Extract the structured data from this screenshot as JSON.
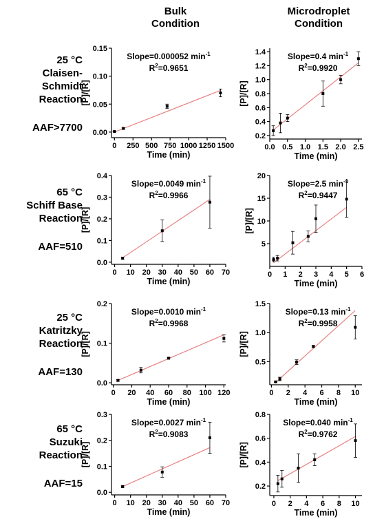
{
  "headers": {
    "bulk": [
      "Bulk",
      "Condition"
    ],
    "micro": [
      "Microdroplet",
      "Condition"
    ]
  },
  "rows": [
    {
      "temp": "25 °C",
      "name": [
        "Claisen-",
        "Schmidt",
        "Reaction"
      ],
      "aaf": "AAF>7700"
    },
    {
      "temp": "65 °C",
      "name": [
        "Schiff Base",
        "Reaction"
      ],
      "aaf": "AAF=510"
    },
    {
      "temp": "25 °C",
      "name": [
        "Katritzky",
        "Reaction"
      ],
      "aaf": "AAF=130"
    },
    {
      "temp": "65 °C",
      "name": [
        "Suzuki",
        "Reaction"
      ],
      "aaf": "AAF=15"
    }
  ],
  "colors": {
    "fit_line": "#e88080",
    "points": "#000000",
    "axis": "#000000"
  },
  "chart_data": [
    {
      "type": "scatter",
      "xlabel": "Time (min)",
      "ylabel": "[P]/[R]",
      "xlim": [
        -40,
        1500
      ],
      "ylim": [
        -0.01,
        0.15
      ],
      "xticks": [
        0,
        250,
        500,
        750,
        1000,
        1250,
        1500
      ],
      "yticks": [
        0.0,
        0.05,
        0.1,
        0.15
      ],
      "ydec": 2,
      "points": [
        {
          "x": 0,
          "y": 0.001,
          "err": 0.0005
        },
        {
          "x": 120,
          "y": 0.0065,
          "err": 0.001
        },
        {
          "x": 710,
          "y": 0.046,
          "err": 0.004
        },
        {
          "x": 1430,
          "y": 0.07,
          "err": 0.007
        }
      ],
      "fit": [
        [
          0,
          0.0
        ],
        [
          1430,
          0.0745
        ]
      ],
      "slope": {
        "prefix": "Slope=0.000052 min",
        "sup": "-1"
      },
      "r2": {
        "pre": "R",
        "sup": "2",
        "post": "=0.9651"
      }
    },
    {
      "type": "scatter",
      "xlabel": "Time (min)",
      "ylabel": "[P]/[R]",
      "xlim": [
        0,
        2.6
      ],
      "ylim": [
        0.15,
        1.45
      ],
      "xticks": [
        0.0,
        0.5,
        1.0,
        1.5,
        2.0,
        2.5
      ],
      "yticks": [
        0.2,
        0.4,
        0.6,
        0.8,
        1.0,
        1.2,
        1.4
      ],
      "xdec": 1,
      "ydec": 1,
      "points": [
        {
          "x": 0.1,
          "y": 0.27,
          "err": 0.07
        },
        {
          "x": 0.3,
          "y": 0.38,
          "err": 0.14
        },
        {
          "x": 0.5,
          "y": 0.45,
          "err": 0.05
        },
        {
          "x": 1.5,
          "y": 0.8,
          "err": 0.18
        },
        {
          "x": 2.0,
          "y": 1.0,
          "err": 0.06
        },
        {
          "x": 2.5,
          "y": 1.3,
          "err": 0.1
        }
      ],
      "fit": [
        [
          0.1,
          0.28
        ],
        [
          2.5,
          1.24
        ]
      ],
      "slope": {
        "prefix": "Slope=0.4 min",
        "sup": "-1"
      },
      "r2": {
        "pre": "R",
        "sup": "2",
        "post": "=0.9920"
      }
    },
    {
      "type": "scatter",
      "xlabel": "Time (min)",
      "ylabel": "[P]/[R]",
      "xlim": [
        -2,
        70
      ],
      "ylim": [
        -0.01,
        0.4
      ],
      "xticks": [
        0,
        10,
        20,
        30,
        40,
        50,
        60,
        70
      ],
      "yticks": [
        0.0,
        0.1,
        0.2,
        0.3,
        0.4
      ],
      "ydec": 1,
      "points": [
        {
          "x": 5,
          "y": 0.018,
          "err": 0.005
        },
        {
          "x": 30,
          "y": 0.145,
          "err": 0.05
        },
        {
          "x": 60,
          "y": 0.277,
          "err": 0.12
        }
      ],
      "fit": [
        [
          5,
          0.02
        ],
        [
          60,
          0.29
        ]
      ],
      "slope": {
        "prefix": "Slope=0.0049 min",
        "sup": "-1"
      },
      "r2": {
        "pre": "R",
        "sup": "2",
        "post": "=0.9966"
      }
    },
    {
      "type": "scatter",
      "xlabel": "Time (min)",
      "ylabel": "[P]/[R]",
      "xlim": [
        0,
        6
      ],
      "ylim": [
        0,
        20
      ],
      "xticks": [
        0,
        1,
        2,
        3,
        4,
        5,
        6
      ],
      "yticks": [
        5,
        10,
        15,
        20
      ],
      "ydec": 0,
      "points": [
        {
          "x": 0.25,
          "y": 1.5,
          "err": 0.5
        },
        {
          "x": 0.5,
          "y": 1.8,
          "err": 0.6
        },
        {
          "x": 1.5,
          "y": 5.2,
          "err": 2.5
        },
        {
          "x": 2.5,
          "y": 6.6,
          "err": 1.2
        },
        {
          "x": 3.0,
          "y": 10.5,
          "err": 3.0
        },
        {
          "x": 5.0,
          "y": 14.8,
          "err": 4.0
        }
      ],
      "fit": [
        [
          0.25,
          0.8
        ],
        [
          5.0,
          13.0
        ]
      ],
      "slope": {
        "prefix": "Slope=2.5 min",
        "sup": "-1"
      },
      "r2": {
        "pre": "R",
        "sup": "2",
        "post": "=0.9447"
      }
    },
    {
      "type": "scatter",
      "xlabel": "Time (min)",
      "ylabel": "[P]/[R]",
      "xlim": [
        -2,
        122
      ],
      "ylim": [
        -0.005,
        0.2
      ],
      "xticks": [
        0,
        20,
        40,
        60,
        80,
        100,
        120
      ],
      "yticks": [
        0.0,
        0.1,
        0.2
      ],
      "ydec": 1,
      "points": [
        {
          "x": 5,
          "y": 0.006,
          "err": 0.002
        },
        {
          "x": 30,
          "y": 0.032,
          "err": 0.007
        },
        {
          "x": 60,
          "y": 0.062,
          "err": 0.002
        },
        {
          "x": 120,
          "y": 0.112,
          "err": 0.009
        }
      ],
      "fit": [
        [
          5,
          0.006
        ],
        [
          120,
          0.121
        ]
      ],
      "slope": {
        "prefix": "Slope=0.0010 min",
        "sup": "-1"
      },
      "r2": {
        "pre": "R",
        "sup": "2",
        "post": "=0.9968"
      }
    },
    {
      "type": "scatter",
      "xlabel": "Time (min)",
      "ylabel": "[P]/[R]",
      "xlim": [
        -0.2,
        10.8
      ],
      "ylim": [
        0.1,
        1.5
      ],
      "xticks": [
        0,
        2,
        4,
        6,
        8,
        10
      ],
      "yticks": [
        0.5,
        1.0,
        1.5
      ],
      "ydec": 1,
      "points": [
        {
          "x": 0.5,
          "y": 0.15,
          "err": 0.01
        },
        {
          "x": 1.0,
          "y": 0.2,
          "err": 0.03
        },
        {
          "x": 3.0,
          "y": 0.49,
          "err": 0.04
        },
        {
          "x": 5.0,
          "y": 0.76,
          "err": 0.02
        },
        {
          "x": 10.0,
          "y": 1.09,
          "err": 0.2
        }
      ],
      "fit": [
        [
          0.5,
          0.14
        ],
        [
          10.0,
          1.38
        ]
      ],
      "slope": {
        "prefix": "Slope=0.13 min",
        "sup": "-1"
      },
      "r2": {
        "pre": "R",
        "sup": "2",
        "post": "=0.9958"
      }
    },
    {
      "type": "scatter",
      "xlabel": "Time (min)",
      "ylabel": "[P]/[R]",
      "xlim": [
        -2,
        70
      ],
      "ylim": [
        -0.01,
        0.3
      ],
      "xticks": [
        0,
        10,
        20,
        30,
        40,
        50,
        60,
        70
      ],
      "yticks": [
        0.0,
        0.1,
        0.2,
        0.3
      ],
      "ydec": 1,
      "points": [
        {
          "x": 5,
          "y": 0.022,
          "err": 0.003
        },
        {
          "x": 30,
          "y": 0.078,
          "err": 0.02
        },
        {
          "x": 60,
          "y": 0.21,
          "err": 0.06
        }
      ],
      "fit": [
        [
          5,
          0.022
        ],
        [
          60,
          0.172
        ]
      ],
      "slope": {
        "prefix": "Slope=0.0027 min",
        "sup": "-1"
      },
      "r2": {
        "pre": "R",
        "sup": "2",
        "post": "=0.9083"
      }
    },
    {
      "type": "scatter",
      "xlabel": "Time (min)",
      "ylabel": "[P]/[R]",
      "xlim": [
        -0.5,
        10.8
      ],
      "ylim": [
        0.12,
        0.8
      ],
      "xticks": [
        0,
        2,
        4,
        6,
        8,
        10
      ],
      "yticks": [
        0.2,
        0.4,
        0.6,
        0.8
      ],
      "ydec": 1,
      "points": [
        {
          "x": 0.5,
          "y": 0.22,
          "err": 0.07
        },
        {
          "x": 1.0,
          "y": 0.26,
          "err": 0.07
        },
        {
          "x": 3.0,
          "y": 0.35,
          "err": 0.12
        },
        {
          "x": 5.0,
          "y": 0.42,
          "err": 0.05
        },
        {
          "x": 10.0,
          "y": 0.58,
          "err": 0.14
        }
      ],
      "fit": [
        [
          0.5,
          0.245
        ],
        [
          10.0,
          0.615
        ]
      ],
      "slope": {
        "prefix": "Slope=0.040 min",
        "sup": "-1"
      },
      "r2": {
        "pre": "R",
        "sup": "2",
        "post": "=0.9762"
      }
    }
  ]
}
